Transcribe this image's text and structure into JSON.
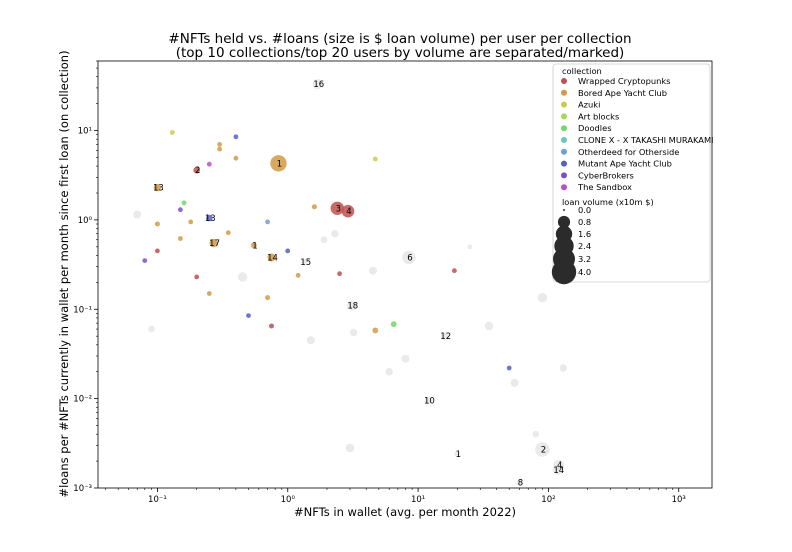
{
  "chart_data": {
    "type": "scatter",
    "title_line1": "#NFTs held vs. #loans (size is $ loan volume) per user per collection",
    "title_line2": "(top 10 collections/top 20 users by volume are separated/marked)",
    "xlabel": "#NFTs in wallet (avg. per month 2022)",
    "ylabel": "#loans per #NFTs currently in wallet per month since first loan (on collection)",
    "x_scale": "log",
    "y_scale": "log",
    "xlim": [
      0.035,
      1800
    ],
    "ylim": [
      0.001,
      60
    ],
    "x_ticks": [
      {
        "value": 0.1,
        "label": "10⁻¹"
      },
      {
        "value": 1,
        "label": "10⁰"
      },
      {
        "value": 10,
        "label": "10¹"
      },
      {
        "value": 100,
        "label": "10²"
      },
      {
        "value": 1000,
        "label": "10³"
      }
    ],
    "y_ticks": [
      {
        "value": 0.001,
        "label": "10⁻³"
      },
      {
        "value": 0.01,
        "label": "10⁻²"
      },
      {
        "value": 0.1,
        "label": "10⁻¹"
      },
      {
        "value": 1,
        "label": "10⁰"
      },
      {
        "value": 10,
        "label": "10¹"
      }
    ],
    "grid": false,
    "legend_position": "top-right",
    "legend_title": "collection",
    "collections": [
      {
        "name": "Wrapped Cryptopunks",
        "color": "#c0504d"
      },
      {
        "name": "Bored Ape Yacht Club",
        "color": "#d19a45"
      },
      {
        "name": "Azuki",
        "color": "#c9cc4a"
      },
      {
        "name": "Art blocks",
        "color": "#a7d65a"
      },
      {
        "name": "Doodles",
        "color": "#75d66a"
      },
      {
        "name": "CLONE X - X TAKASHI MURAKAMI",
        "color": "#69c7c0"
      },
      {
        "name": "Otherdeed for Otherside",
        "color": "#6e9fd8"
      },
      {
        "name": "Mutant Ape Yacht Club",
        "color": "#5560c2"
      },
      {
        "name": "CyberBrokers",
        "color": "#7a50c9"
      },
      {
        "name": "The Sandbox",
        "color": "#b452c2"
      }
    ],
    "size_legend_title": "loan volume (x10m $)",
    "size_legend": [
      0.0,
      0.8,
      1.6,
      2.4,
      3.2,
      4.0
    ],
    "other_color": "#d9d9d9",
    "points": [
      {
        "x": 0.85,
        "y": 4.3,
        "vol": 1.6,
        "c": 1,
        "label": "1"
      },
      {
        "x": 2.4,
        "y": 1.35,
        "vol": 1.0,
        "c": 0,
        "label": "3"
      },
      {
        "x": 2.9,
        "y": 1.25,
        "vol": 0.85,
        "c": 0,
        "label": "4"
      },
      {
        "x": 1.7,
        "y": 33,
        "vol": 0.5,
        "c": -1,
        "label": "16"
      },
      {
        "x": 0.2,
        "y": 3.6,
        "vol": 0.15,
        "c": 0,
        "label": "2"
      },
      {
        "x": 0.1,
        "y": 2.3,
        "vol": 0.2,
        "c": 1,
        "label": "13"
      },
      {
        "x": 0.25,
        "y": 1.05,
        "vol": 0.15,
        "c": 7,
        "label": "13"
      },
      {
        "x": 0.27,
        "y": 0.55,
        "vol": 0.3,
        "c": 1,
        "label": "17"
      },
      {
        "x": 0.55,
        "y": 0.52,
        "vol": 0.1,
        "c": 1,
        "label": "1"
      },
      {
        "x": 0.75,
        "y": 0.38,
        "vol": 0.25,
        "c": 1,
        "label": "14"
      },
      {
        "x": 1.35,
        "y": 0.34,
        "vol": 0.1,
        "c": -1,
        "label": "15"
      },
      {
        "x": 8.5,
        "y": 0.38,
        "vol": 1.0,
        "c": -1,
        "label": "6"
      },
      {
        "x": 3.1,
        "y": 0.11,
        "vol": 0.4,
        "c": -1,
        "label": "18"
      },
      {
        "x": 16,
        "y": 0.05,
        "vol": 0.25,
        "c": -1,
        "label": "12"
      },
      {
        "x": 12,
        "y": 0.0095,
        "vol": 0.2,
        "c": -1,
        "label": "10"
      },
      {
        "x": 90,
        "y": 0.0027,
        "vol": 1.2,
        "c": -1,
        "label": "2"
      },
      {
        "x": 20,
        "y": 0.0024,
        "vol": 0.1,
        "c": -1,
        "label": "1"
      },
      {
        "x": 120,
        "y": 0.0018,
        "vol": 0.6,
        "c": -1,
        "label": "4"
      },
      {
        "x": 118,
        "y": 0.0016,
        "vol": 0.5,
        "c": -1,
        "label": "14"
      },
      {
        "x": 60,
        "y": 0.00115,
        "vol": 0.1,
        "c": -1,
        "label": "8"
      },
      {
        "x": 0.07,
        "y": 1.15,
        "vol": 0.25,
        "c": -1
      },
      {
        "x": 0.45,
        "y": 0.23,
        "vol": 0.4,
        "c": -1
      },
      {
        "x": 90,
        "y": 0.135,
        "vol": 0.4,
        "c": -1
      },
      {
        "x": 35,
        "y": 0.065,
        "vol": 0.3,
        "c": -1
      },
      {
        "x": 6.5,
        "y": 0.068,
        "vol": 0.1,
        "c": 4
      },
      {
        "x": 4.7,
        "y": 0.058,
        "vol": 0.1,
        "c": 1
      },
      {
        "x": 0.16,
        "y": 1.55,
        "vol": 0.06,
        "c": 4
      },
      {
        "x": 0.13,
        "y": 9.5,
        "vol": 0.05,
        "c": 2
      },
      {
        "x": 0.3,
        "y": 6.2,
        "vol": 0.05,
        "c": 1
      },
      {
        "x": 0.3,
        "y": 7.0,
        "vol": 0.05,
        "c": 1
      },
      {
        "x": 0.4,
        "y": 8.5,
        "vol": 0.05,
        "c": 7
      },
      {
        "x": 0.4,
        "y": 4.9,
        "vol": 0.05,
        "c": 1
      },
      {
        "x": 0.25,
        "y": 4.2,
        "vol": 0.05,
        "c": 9
      },
      {
        "x": 0.1,
        "y": 0.9,
        "vol": 0.06,
        "c": 1
      },
      {
        "x": 0.15,
        "y": 1.3,
        "vol": 0.05,
        "c": 8
      },
      {
        "x": 0.2,
        "y": 0.23,
        "vol": 0.05,
        "c": 0
      },
      {
        "x": 0.25,
        "y": 0.15,
        "vol": 0.05,
        "c": 1
      },
      {
        "x": 0.7,
        "y": 0.135,
        "vol": 0.06,
        "c": 1
      },
      {
        "x": 0.75,
        "y": 0.065,
        "vol": 0.06,
        "c": 0
      },
      {
        "x": 0.5,
        "y": 0.085,
        "vol": 0.05,
        "c": 7
      },
      {
        "x": 1.6,
        "y": 1.4,
        "vol": 0.06,
        "c": 1
      },
      {
        "x": 0.7,
        "y": 0.95,
        "vol": 0.05,
        "c": 6
      },
      {
        "x": 1.0,
        "y": 0.45,
        "vol": 0.05,
        "c": 7
      },
      {
        "x": 2.5,
        "y": 0.25,
        "vol": 0.05,
        "c": 0
      },
      {
        "x": 19,
        "y": 0.27,
        "vol": 0.05,
        "c": 0
      },
      {
        "x": 25,
        "y": 0.5,
        "vol": 0.05,
        "c": -1
      },
      {
        "x": 50,
        "y": 0.022,
        "vol": 0.05,
        "c": 7
      },
      {
        "x": 4.7,
        "y": 4.8,
        "vol": 0.05,
        "c": 2
      },
      {
        "x": 1.2,
        "y": 0.24,
        "vol": 0.05,
        "c": 1
      },
      {
        "x": 0.35,
        "y": 0.72,
        "vol": 0.05,
        "c": 1
      },
      {
        "x": 0.15,
        "y": 0.62,
        "vol": 0.05,
        "c": 1
      },
      {
        "x": 0.18,
        "y": 0.95,
        "vol": 0.05,
        "c": 1
      },
      {
        "x": 0.1,
        "y": 0.45,
        "vol": 0.05,
        "c": 0
      },
      {
        "x": 0.08,
        "y": 0.35,
        "vol": 0.05,
        "c": 8
      },
      {
        "x": 4.5,
        "y": 0.27,
        "vol": 0.25,
        "c": -1
      },
      {
        "x": 6,
        "y": 0.02,
        "vol": 0.2,
        "c": -1
      },
      {
        "x": 3,
        "y": 0.0028,
        "vol": 0.3,
        "c": -1
      },
      {
        "x": 80,
        "y": 0.004,
        "vol": 0.15,
        "c": -1
      },
      {
        "x": 130,
        "y": 0.022,
        "vol": 0.2,
        "c": -1
      },
      {
        "x": 55,
        "y": 0.015,
        "vol": 0.25,
        "c": -1
      },
      {
        "x": 1.5,
        "y": 0.045,
        "vol": 0.25,
        "c": -1
      },
      {
        "x": 3.2,
        "y": 0.055,
        "vol": 0.2,
        "c": -1
      },
      {
        "x": 2.3,
        "y": 0.7,
        "vol": 0.2,
        "c": -1
      },
      {
        "x": 1.9,
        "y": 0.6,
        "vol": 0.15,
        "c": -1
      },
      {
        "x": 0.09,
        "y": 0.06,
        "vol": 0.15,
        "c": -1
      },
      {
        "x": 8.0,
        "y": 0.028,
        "vol": 0.25,
        "c": -1
      }
    ]
  }
}
